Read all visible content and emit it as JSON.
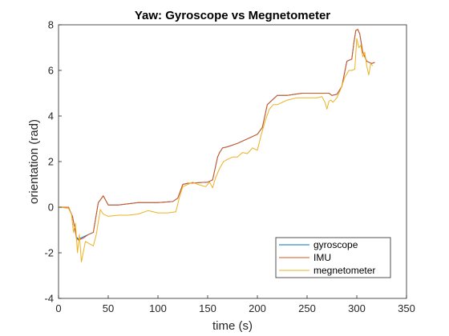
{
  "chart_data": {
    "type": "line",
    "title": "Yaw: Gyroscope vs Megnetometer",
    "xlabel": "time (s)",
    "ylabel": "orientation (rad)",
    "xlim": [
      0,
      350
    ],
    "ylim": [
      -4,
      8
    ],
    "xticks": [
      0,
      50,
      100,
      150,
      200,
      250,
      300,
      350
    ],
    "yticks": [
      -4,
      -2,
      0,
      2,
      4,
      6,
      8
    ],
    "grid": false,
    "legend_position": "bottom-right",
    "series": [
      {
        "name": "gyroscope",
        "color": "#0072BD",
        "x": [
          0,
          10,
          14,
          18,
          20,
          25,
          30,
          35,
          40,
          45,
          50,
          60,
          80,
          100,
          115,
          120,
          125,
          130,
          150,
          155,
          160,
          162,
          165,
          170,
          180,
          195,
          200,
          205,
          210,
          220,
          230,
          245,
          255,
          265,
          272,
          275,
          280,
          285,
          290,
          295,
          297,
          299,
          301,
          303,
          306,
          310,
          315,
          318
        ],
        "y": [
          0,
          0,
          -0.4,
          -1.3,
          -1.4,
          -1.3,
          -1.2,
          -1.1,
          0.2,
          0.5,
          0.1,
          0.1,
          0.2,
          0.2,
          0.25,
          0.4,
          1.0,
          1.05,
          1.1,
          1.2,
          2.2,
          2.4,
          2.6,
          2.65,
          2.8,
          3.1,
          3.2,
          3.5,
          4.5,
          4.9,
          4.9,
          5.0,
          5.0,
          5.0,
          5.0,
          4.9,
          4.95,
          5.3,
          6.4,
          6.5,
          7.2,
          7.75,
          7.8,
          7.6,
          6.8,
          6.4,
          6.3,
          6.35
        ]
      },
      {
        "name": "IMU",
        "color": "#D95319",
        "x": [
          0,
          10,
          14,
          18,
          20,
          25,
          30,
          35,
          40,
          45,
          50,
          60,
          80,
          100,
          115,
          120,
          125,
          130,
          150,
          155,
          160,
          162,
          165,
          170,
          180,
          195,
          200,
          205,
          210,
          220,
          230,
          245,
          255,
          265,
          272,
          275,
          280,
          285,
          290,
          295,
          297,
          299,
          301,
          303,
          306,
          310,
          315,
          318
        ],
        "y": [
          0,
          0,
          -0.4,
          -1.35,
          -1.45,
          -1.35,
          -1.2,
          -1.1,
          0.2,
          0.5,
          0.1,
          0.1,
          0.2,
          0.2,
          0.25,
          0.4,
          1.0,
          1.05,
          1.1,
          1.2,
          2.2,
          2.4,
          2.6,
          2.65,
          2.8,
          3.1,
          3.2,
          3.5,
          4.5,
          4.9,
          4.9,
          5.0,
          5.0,
          5.0,
          5.0,
          4.9,
          4.95,
          5.3,
          6.4,
          6.5,
          7.2,
          7.75,
          7.8,
          7.6,
          6.8,
          6.4,
          6.3,
          6.35
        ]
      },
      {
        "name": "megnetometer",
        "color": "#EDB120",
        "x": [
          0,
          10,
          13,
          15,
          17,
          19,
          21,
          23,
          27,
          31,
          35,
          38,
          42,
          45,
          50,
          60,
          70,
          80,
          90,
          100,
          110,
          118,
          122,
          125,
          130,
          135,
          140,
          148,
          152,
          155,
          158,
          162,
          166,
          170,
          175,
          180,
          185,
          190,
          195,
          200,
          204,
          208,
          212,
          216,
          220,
          230,
          240,
          250,
          260,
          265,
          268,
          270,
          272,
          274,
          276,
          280,
          284,
          288,
          292,
          295,
          298,
          300,
          302,
          304,
          306,
          308,
          310,
          312,
          314,
          316
        ],
        "y": [
          0,
          -0.05,
          -0.3,
          -1.1,
          -0.7,
          -2.0,
          -1.2,
          -2.4,
          -1.5,
          -1.6,
          -1.7,
          -1.2,
          -0.1,
          -0.3,
          -0.4,
          -0.35,
          -0.35,
          -0.3,
          -0.15,
          -0.25,
          -0.25,
          -0.2,
          0.5,
          0.9,
          1.0,
          1.1,
          1.0,
          0.9,
          1.1,
          0.85,
          1.3,
          1.7,
          2.0,
          2.1,
          2.2,
          2.2,
          2.4,
          2.35,
          2.6,
          2.5,
          3.2,
          3.8,
          4.3,
          4.5,
          4.5,
          4.7,
          4.8,
          4.8,
          4.8,
          4.85,
          4.6,
          4.3,
          4.65,
          4.7,
          4.6,
          4.8,
          5.2,
          5.7,
          6.0,
          6.0,
          6.05,
          7.4,
          7.0,
          7.1,
          6.6,
          6.8,
          6.2,
          5.8,
          6.3,
          6.2
        ]
      }
    ]
  }
}
